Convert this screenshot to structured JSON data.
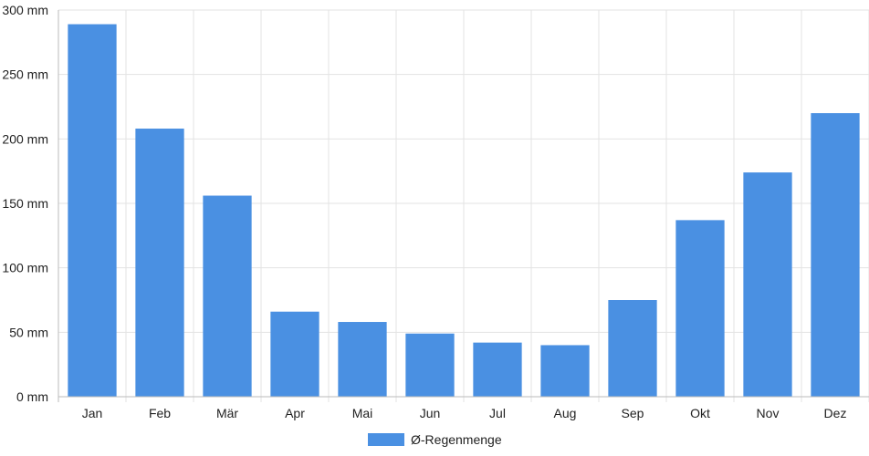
{
  "chart_data": {
    "type": "bar",
    "title": "",
    "xlabel": "",
    "ylabel": "",
    "categories": [
      "Jan",
      "Feb",
      "Mär",
      "Apr",
      "Mai",
      "Jun",
      "Jul",
      "Aug",
      "Sep",
      "Okt",
      "Nov",
      "Dez"
    ],
    "series": [
      {
        "name": "Ø-Regenmenge",
        "values": [
          289,
          208,
          156,
          66,
          58,
          49,
          42,
          40,
          75,
          137,
          174,
          220
        ]
      }
    ],
    "ylim": [
      0,
      300
    ],
    "yticks": [
      0,
      50,
      100,
      150,
      200,
      250,
      300
    ],
    "ytick_labels": [
      "0 mm",
      "50 mm",
      "100 mm",
      "150 mm",
      "200 mm",
      "250 mm",
      "300 mm"
    ],
    "grid": true,
    "legend_position": "bottom-center",
    "colors": {
      "bar": "#4a90e2",
      "grid": "#e3e3e3",
      "axis": "#bbbbbb"
    }
  }
}
